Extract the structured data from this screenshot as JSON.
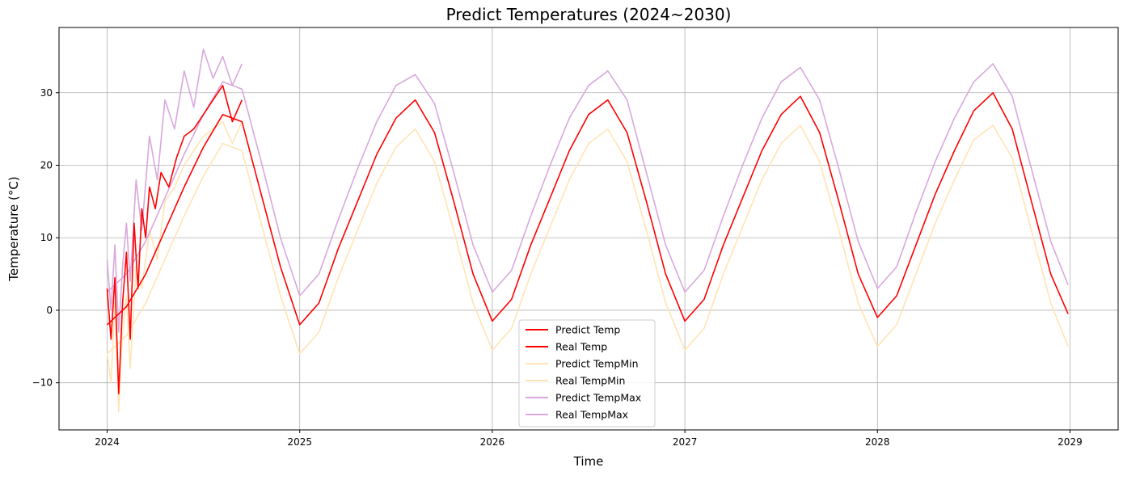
{
  "chart_data": {
    "type": "line",
    "title": "Predict Temperatures (2024~2030)",
    "xlabel": "Time",
    "ylabel": "Temperature (°C)",
    "x_ticks": [
      "2024",
      "2025",
      "2026",
      "2027",
      "2028",
      "2029"
    ],
    "y_ticks": [
      -10,
      0,
      10,
      20,
      30
    ],
    "xlim": [
      2023.75,
      2029.25
    ],
    "ylim": [
      -16.5,
      39
    ],
    "grid": true,
    "legend_position": "lower center",
    "legend": [
      {
        "label": "Predict Temp",
        "color": "#ff0000"
      },
      {
        "label": "Real Temp",
        "color": "#ff0000"
      },
      {
        "label": "Predict TempMin",
        "color": "#ffe4b5"
      },
      {
        "label": "Real TempMin",
        "color": "#ffe4b5"
      },
      {
        "label": "Predict TempMax",
        "color": "#d8a8dc"
      },
      {
        "label": "Real TempMax",
        "color": "#d8a8dc"
      }
    ],
    "series": [
      {
        "name": "Predict Temp",
        "color": "#ff0000",
        "x": [
          2024.0,
          2024.1,
          2024.2,
          2024.3,
          2024.4,
          2024.5,
          2024.6,
          2024.7,
          2024.8,
          2024.9,
          2025.0,
          2025.1,
          2025.2,
          2025.3,
          2025.4,
          2025.5,
          2025.6,
          2025.7,
          2025.8,
          2025.9,
          2026.0,
          2026.1,
          2026.2,
          2026.3,
          2026.4,
          2026.5,
          2026.6,
          2026.7,
          2026.8,
          2026.9,
          2027.0,
          2027.1,
          2027.2,
          2027.3,
          2027.4,
          2027.5,
          2027.6,
          2027.7,
          2027.8,
          2027.9,
          2028.0,
          2028.1,
          2028.2,
          2028.3,
          2028.4,
          2028.5,
          2028.6,
          2028.7,
          2028.8,
          2028.9,
          2028.99
        ],
        "values": [
          -2.0,
          0.5,
          5.0,
          11.0,
          17.0,
          22.5,
          27.0,
          26.0,
          16.0,
          6.0,
          -2.0,
          1.0,
          8.5,
          15.0,
          21.5,
          26.5,
          29.0,
          24.5,
          15.0,
          5.0,
          -1.5,
          1.5,
          9.0,
          15.5,
          22.0,
          27.0,
          29.0,
          24.5,
          15.0,
          5.0,
          -1.5,
          1.5,
          9.0,
          15.5,
          22.0,
          27.0,
          29.5,
          24.5,
          15.0,
          5.0,
          -1.0,
          2.0,
          9.0,
          16.0,
          22.0,
          27.5,
          30.0,
          25.0,
          15.0,
          5.0,
          -0.5
        ]
      },
      {
        "name": "Real Temp",
        "color": "#ff0000",
        "x": [
          2024.0,
          2024.02,
          2024.04,
          2024.06,
          2024.08,
          2024.1,
          2024.12,
          2024.14,
          2024.16,
          2024.18,
          2024.2,
          2024.22,
          2024.25,
          2024.28,
          2024.32,
          2024.36,
          2024.4,
          2024.45,
          2024.5,
          2024.55,
          2024.6,
          2024.65,
          2024.7
        ],
        "values": [
          3.0,
          -4.0,
          4.5,
          -11.5,
          1.0,
          8.0,
          -4.0,
          12.0,
          3.0,
          14.0,
          10.0,
          17.0,
          14.0,
          19.0,
          17.0,
          21.0,
          24.0,
          25.0,
          27.0,
          29.0,
          31.0,
          26.0,
          29.0
        ]
      },
      {
        "name": "Predict TempMin",
        "color": "#ffe4b5",
        "x": [
          2024.0,
          2024.1,
          2024.2,
          2024.3,
          2024.4,
          2024.5,
          2024.6,
          2024.7,
          2024.8,
          2024.9,
          2025.0,
          2025.1,
          2025.2,
          2025.3,
          2025.4,
          2025.5,
          2025.6,
          2025.7,
          2025.8,
          2025.9,
          2026.0,
          2026.1,
          2026.2,
          2026.3,
          2026.4,
          2026.5,
          2026.6,
          2026.7,
          2026.8,
          2026.9,
          2027.0,
          2027.1,
          2027.2,
          2027.3,
          2027.4,
          2027.5,
          2027.6,
          2027.7,
          2027.8,
          2027.9,
          2028.0,
          2028.1,
          2028.2,
          2028.3,
          2028.4,
          2028.5,
          2028.6,
          2028.7,
          2028.8,
          2028.9,
          2028.99
        ],
        "values": [
          -6.0,
          -3.5,
          1.0,
          7.0,
          13.0,
          18.5,
          23.0,
          22.0,
          12.0,
          2.0,
          -6.0,
          -3.0,
          4.5,
          11.0,
          17.5,
          22.5,
          25.0,
          20.5,
          11.0,
          1.0,
          -5.5,
          -2.5,
          5.0,
          11.5,
          18.0,
          23.0,
          25.0,
          20.5,
          11.0,
          1.0,
          -5.5,
          -2.5,
          5.0,
          11.5,
          18.0,
          23.0,
          25.5,
          20.5,
          11.0,
          1.0,
          -5.0,
          -2.0,
          5.0,
          12.0,
          18.0,
          23.5,
          25.5,
          21.0,
          11.0,
          1.0,
          -5.0
        ]
      },
      {
        "name": "Real TempMin",
        "color": "#ffe4b5",
        "x": [
          2024.0,
          2024.02,
          2024.04,
          2024.06,
          2024.08,
          2024.1,
          2024.12,
          2024.15,
          2024.18,
          2024.22,
          2024.26,
          2024.3,
          2024.35,
          2024.4,
          2024.45,
          2024.5,
          2024.55,
          2024.6,
          2024.65,
          2024.7
        ],
        "values": [
          -6.0,
          -10.0,
          1.0,
          -14.0,
          -3.0,
          2.0,
          -8.0,
          6.0,
          3.0,
          11.0,
          7.0,
          15.0,
          17.0,
          20.0,
          22.0,
          24.0,
          25.0,
          26.0,
          23.0,
          26.0
        ]
      },
      {
        "name": "Predict TempMax",
        "color": "#d8a8dc",
        "x": [
          2024.0,
          2024.1,
          2024.2,
          2024.3,
          2024.4,
          2024.5,
          2024.6,
          2024.7,
          2024.8,
          2024.9,
          2025.0,
          2025.1,
          2025.2,
          2025.3,
          2025.4,
          2025.5,
          2025.6,
          2025.7,
          2025.8,
          2025.9,
          2026.0,
          2026.1,
          2026.2,
          2026.3,
          2026.4,
          2026.5,
          2026.6,
          2026.7,
          2026.8,
          2026.9,
          2027.0,
          2027.1,
          2027.2,
          2027.3,
          2027.4,
          2027.5,
          2027.6,
          2027.7,
          2027.8,
          2027.9,
          2028.0,
          2028.1,
          2028.2,
          2028.3,
          2028.4,
          2028.5,
          2028.6,
          2028.7,
          2028.8,
          2028.9,
          2028.99
        ],
        "values": [
          2.5,
          5.0,
          9.5,
          15.5,
          21.5,
          27.0,
          31.5,
          30.5,
          20.5,
          10.0,
          2.0,
          5.0,
          12.5,
          19.5,
          26.0,
          31.0,
          32.5,
          28.5,
          19.0,
          9.0,
          2.5,
          5.5,
          13.0,
          20.0,
          26.5,
          31.0,
          33.0,
          29.0,
          19.0,
          9.0,
          2.5,
          5.5,
          13.0,
          20.0,
          26.5,
          31.5,
          33.5,
          29.0,
          19.5,
          9.5,
          3.0,
          6.0,
          13.5,
          20.5,
          26.5,
          31.5,
          34.0,
          29.5,
          19.5,
          9.5,
          3.5
        ]
      },
      {
        "name": "Real TempMax",
        "color": "#d8a8dc",
        "x": [
          2024.0,
          2024.02,
          2024.04,
          2024.06,
          2024.08,
          2024.1,
          2024.12,
          2024.15,
          2024.18,
          2024.22,
          2024.26,
          2024.3,
          2024.35,
          2024.4,
          2024.45,
          2024.5,
          2024.55,
          2024.6,
          2024.65,
          2024.7
        ],
        "values": [
          7.0,
          0.0,
          9.0,
          -3.0,
          6.0,
          12.0,
          4.0,
          18.0,
          11.0,
          24.0,
          18.0,
          29.0,
          25.0,
          33.0,
          28.0,
          36.0,
          32.0,
          35.0,
          31.0,
          34.0
        ]
      }
    ]
  }
}
